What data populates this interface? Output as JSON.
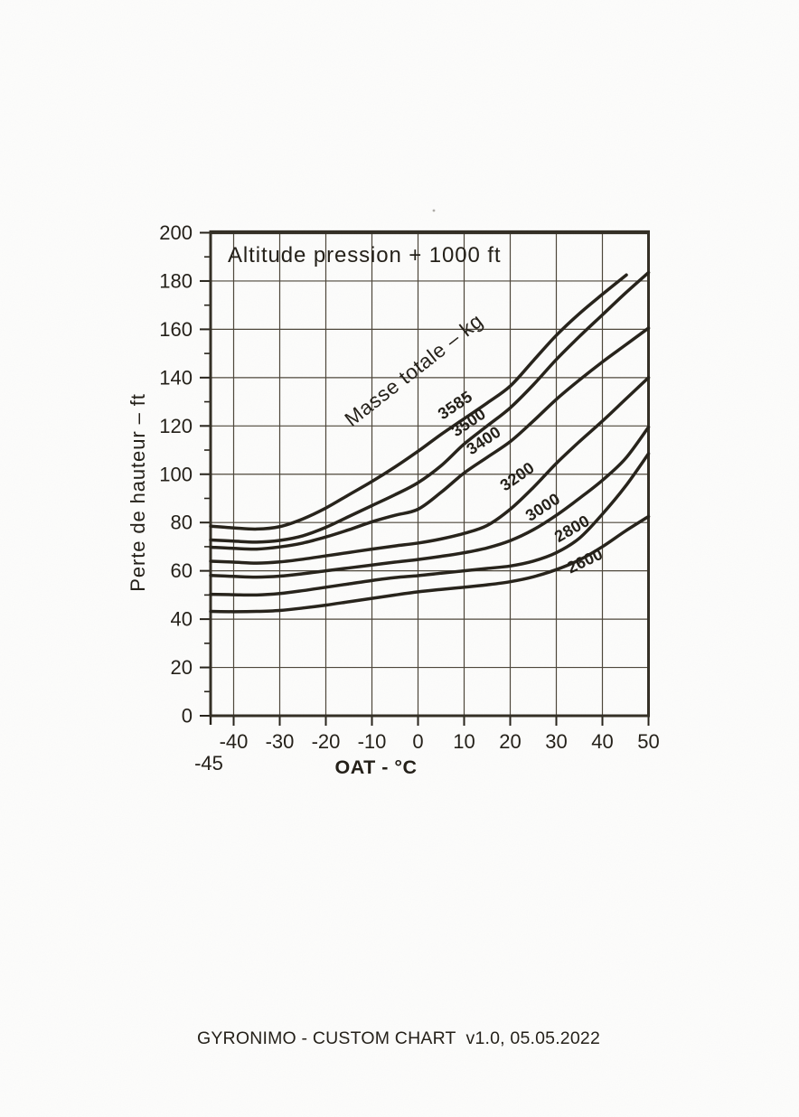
{
  "page": {
    "background": "#fdfdfc",
    "footer_text": "GYRONIMO - CUSTOM CHART  v1.0, 05.05.2022"
  },
  "chart_data": {
    "type": "line",
    "title": "Altitude pression + 1000 ft",
    "xlabel": "OAT - °C",
    "ylabel": "Perte de hauteur – ft",
    "curve_family_label": "Masse totale – kg",
    "curve_family_label_pos": {
      "x": 0.0,
      "y": 140.9,
      "angle": -38
    },
    "xlim": [
      -45,
      50
    ],
    "ylim": [
      0,
      200
    ],
    "x_ticks": [
      -40,
      -30,
      -20,
      -10,
      0,
      10,
      20,
      30,
      40,
      50
    ],
    "x_edge_tick": {
      "value": -45,
      "label": "-45"
    },
    "y_major_ticks": [
      0,
      20,
      40,
      60,
      80,
      100,
      120,
      140,
      160,
      180,
      200
    ],
    "y_minor_ticks": [
      10,
      30,
      50,
      70,
      90,
      110,
      130,
      150,
      170,
      190
    ],
    "grid": true,
    "legend_position": "inline-labels",
    "ink_color": "#26221a",
    "grid_color": "#4d463a",
    "series": [
      {
        "name": "3585",
        "x": [
          -45,
          -40,
          -35,
          -30,
          -25,
          -20,
          -15,
          -10,
          -5,
          0,
          5,
          10,
          15,
          20,
          25,
          30,
          35,
          40,
          45.2
        ],
        "y": [
          78.5,
          77.8,
          77.3,
          78.3,
          81.5,
          86,
          91.5,
          97,
          103,
          109.5,
          116.5,
          123,
          129.5,
          136.5,
          147,
          157.5,
          166.5,
          174.5,
          182.5
        ],
        "label": {
          "x": 8.7,
          "y": 126.7,
          "angle": -34
        }
      },
      {
        "name": "3500",
        "x": [
          -45,
          -40,
          -35,
          -30,
          -25,
          -20,
          -15,
          -10,
          -5,
          0,
          5,
          10,
          15,
          20,
          25,
          30,
          35,
          40,
          45,
          50
        ],
        "y": [
          72.8,
          72.3,
          71.9,
          72.6,
          74.5,
          78,
          82.5,
          87,
          91.5,
          96.5,
          103.5,
          112.5,
          120,
          127.5,
          137,
          147.5,
          157,
          166,
          175,
          183.5
        ],
        "label": {
          "x": 11.6,
          "y": 119.6,
          "angle": -34
        }
      },
      {
        "name": "3400",
        "x": [
          -45,
          -40,
          -35,
          -30,
          -25,
          -20,
          -15,
          -10,
          -5,
          0,
          5,
          10,
          15,
          20,
          25,
          30,
          35,
          40,
          45,
          50
        ],
        "y": [
          69.8,
          69.3,
          69,
          69.9,
          71.5,
          74,
          77,
          80.3,
          83,
          85.5,
          92.5,
          100.5,
          107,
          113.5,
          122,
          131,
          139,
          146.5,
          153.5,
          160.5
        ],
        "label": {
          "x": 14.9,
          "y": 112.1,
          "angle": -34
        }
      },
      {
        "name": "3200",
        "x": [
          -45,
          -40,
          -35,
          -30,
          -25,
          -20,
          -15,
          -10,
          -5,
          0,
          5,
          10,
          15,
          20,
          25,
          30,
          35,
          40,
          45,
          50
        ],
        "y": [
          64,
          63.6,
          63.2,
          63.7,
          64.8,
          66.2,
          67.6,
          69,
          70.3,
          71.5,
          73.2,
          75.5,
          78.8,
          85.5,
          94.5,
          104.5,
          113.5,
          122,
          131,
          140
        ],
        "label": {
          "x": 22.2,
          "y": 97.2,
          "angle": -35
        }
      },
      {
        "name": "3000",
        "x": [
          -45,
          -40,
          -35,
          -30,
          -25,
          -20,
          -15,
          -10,
          -5,
          0,
          5,
          10,
          15,
          20,
          25,
          30,
          35,
          40,
          45,
          50
        ],
        "y": [
          58.1,
          57.7,
          57.4,
          57.8,
          58.8,
          60,
          61.2,
          62.4,
          63.6,
          64.7,
          66,
          67.5,
          69.5,
          72.5,
          77,
          83,
          90,
          97.5,
          106.5,
          119.5
        ],
        "label": {
          "x": 27.7,
          "y": 84.5,
          "angle": -33
        }
      },
      {
        "name": "2800",
        "x": [
          -45,
          -40,
          -35,
          -30,
          -25,
          -20,
          -15,
          -10,
          -5,
          0,
          5,
          10,
          15,
          20,
          25,
          30,
          35,
          40,
          45,
          50
        ],
        "y": [
          50.3,
          50.1,
          50,
          50.6,
          51.8,
          53.2,
          54.6,
          56,
          57.2,
          58,
          59,
          60,
          61,
          62,
          64,
          67.5,
          73.5,
          83.5,
          95,
          108.5
        ],
        "label": {
          "x": 34,
          "y": 75.5,
          "angle": -30
        }
      },
      {
        "name": "2600",
        "x": [
          -45,
          -40,
          -35,
          -30,
          -25,
          -20,
          -15,
          -10,
          -5,
          0,
          5,
          10,
          15,
          20,
          25,
          30,
          35,
          40,
          45,
          50
        ],
        "y": [
          43.2,
          43.1,
          43.2,
          43.6,
          44.6,
          45.8,
          47.2,
          48.6,
          50,
          51.3,
          52.3,
          53.2,
          54.2,
          55.5,
          57.5,
          60.5,
          64.5,
          70,
          76.5,
          82.5
        ],
        "label": {
          "x": 36.7,
          "y": 62.1,
          "angle": -25
        }
      }
    ]
  }
}
